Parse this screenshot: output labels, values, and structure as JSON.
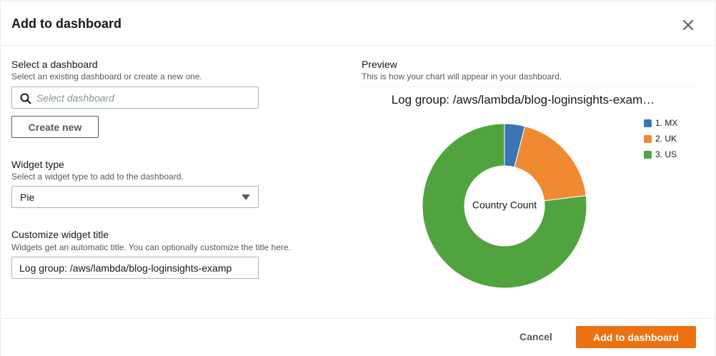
{
  "modal": {
    "title": "Add to dashboard",
    "close_icon": "close-icon"
  },
  "select_dashboard": {
    "label": "Select a dashboard",
    "description": "Select an existing dashboard or create a new one.",
    "search_placeholder": "Select dashboard",
    "search_icon": "search-icon",
    "create_new_label": "Create new"
  },
  "widget_type": {
    "label": "Widget type",
    "description": "Select a widget type to add to the dashboard.",
    "selected": "Pie",
    "caret_icon": "caret-down-icon"
  },
  "widget_title": {
    "label": "Customize widget title",
    "description": "Widgets get an automatic title. You can optionally customize the title here.",
    "value": "Log group: /aws/lambda/blog-loginsights-examp"
  },
  "preview": {
    "label": "Preview",
    "description": "This is how your chart will appear in your dashboard."
  },
  "chart_data": {
    "type": "pie",
    "title": "Log group: /aws/lambda/blog-loginsights-exam…",
    "center_label": "Country Count",
    "donut": true,
    "legend_position": "top-right",
    "categories": [
      "1. MX",
      "2. UK",
      "3. US"
    ],
    "values": [
      4,
      19,
      77
    ],
    "colors": [
      "#3a75b5",
      "#ef8a33",
      "#51a33f"
    ]
  },
  "footer": {
    "cancel_label": "Cancel",
    "submit_label": "Add to dashboard"
  },
  "colors": {
    "primary": "#ec7211",
    "text": "#16191f",
    "muted": "#545b64",
    "border": "#aab7b8"
  }
}
